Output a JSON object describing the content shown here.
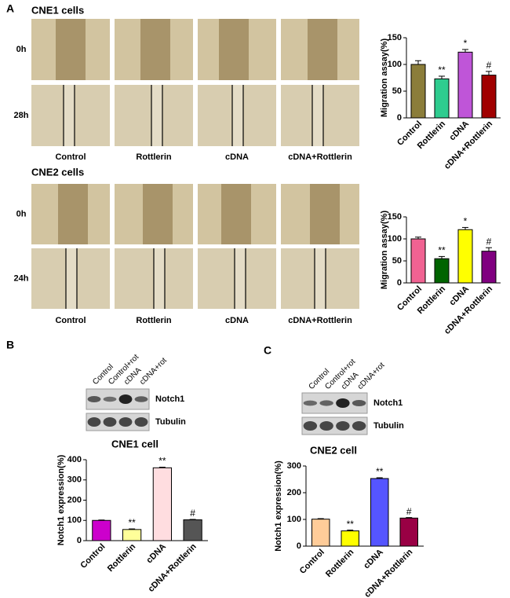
{
  "panel_labels": [
    "A",
    "B",
    "C"
  ],
  "micrographs": [
    {
      "title": "CNE1 cells",
      "rows": [
        "0h",
        "28h"
      ],
      "columns": [
        "Control",
        "Rottlerin",
        "cDNA",
        "cDNA+Rottlerin"
      ]
    },
    {
      "title": "CNE2 cells",
      "rows": [
        "0h",
        "24h"
      ],
      "columns": [
        "Control",
        "Rottlerin",
        "cDNA",
        "cDNA+Rottlerin"
      ]
    }
  ],
  "blots": [
    {
      "lanes": [
        "Control",
        "Control+rot",
        "cDNA",
        "cDNA+rot"
      ],
      "bands": [
        "Notch1",
        "Tubulin"
      ]
    },
    {
      "lanes": [
        "Control",
        "Control+rot",
        "cDNA",
        "cDNA+rot"
      ],
      "bands": [
        "Notch1",
        "Tubulin"
      ]
    }
  ],
  "chart_data": [
    {
      "type": "bar",
      "y_label": "Migration  assay(%)",
      "categories": [
        "Control",
        "Rottlerin",
        "cDNA",
        "cDNA+Rottlerin"
      ],
      "values": [
        100,
        73,
        123,
        80
      ],
      "errors": [
        7,
        5,
        5,
        7
      ],
      "colors": [
        "#8b7d3a",
        "#2ecc8f",
        "#bf55d8",
        "#a00000"
      ],
      "annotations": [
        null,
        "**",
        "*",
        "#"
      ],
      "ylim": [
        0,
        150
      ],
      "yticks": [
        0,
        50,
        100,
        150
      ]
    },
    {
      "type": "bar",
      "y_label": "Migration  assay(%)",
      "categories": [
        "Control",
        "Rottlerin",
        "cDNA",
        "cDNA+Rottlerin"
      ],
      "values": [
        100,
        55,
        121,
        72
      ],
      "errors": [
        4,
        5,
        5,
        8
      ],
      "colors": [
        "#f06292",
        "#006400",
        "#ffff00",
        "#800080"
      ],
      "annotations": [
        null,
        "**",
        "*",
        "#"
      ],
      "ylim": [
        0,
        150
      ],
      "yticks": [
        0,
        50,
        100,
        150
      ]
    },
    {
      "type": "bar",
      "title": "CNE1 cell",
      "y_label": "Notch1 expression(%)",
      "categories": [
        "Control",
        "Rottlerin",
        "cDNA",
        "cDNA+Rottlerin"
      ],
      "values": [
        100,
        55,
        360,
        103
      ],
      "errors": [
        2,
        3,
        3,
        2
      ],
      "colors": [
        "#cc00cc",
        "#ffff99",
        "#ffdde0",
        "#555555"
      ],
      "annotations": [
        null,
        "**",
        "**",
        "#"
      ],
      "ylim": [
        0,
        400
      ],
      "yticks": [
        0,
        100,
        200,
        300,
        400
      ]
    },
    {
      "type": "bar",
      "title": "CNE2 cell",
      "y_label": "Notch1 expression(%)",
      "categories": [
        "Control",
        "Rottlerin",
        "cDNA",
        "cDNA+Rottlerin"
      ],
      "values": [
        101,
        57,
        253,
        105
      ],
      "errors": [
        2,
        3,
        3,
        2
      ],
      "colors": [
        "#ffcc99",
        "#ffff00",
        "#5555ff",
        "#990044"
      ],
      "annotations": [
        null,
        "**",
        "**",
        "#"
      ],
      "ylim": [
        0,
        300
      ],
      "yticks": [
        0,
        100,
        200,
        300
      ]
    }
  ]
}
